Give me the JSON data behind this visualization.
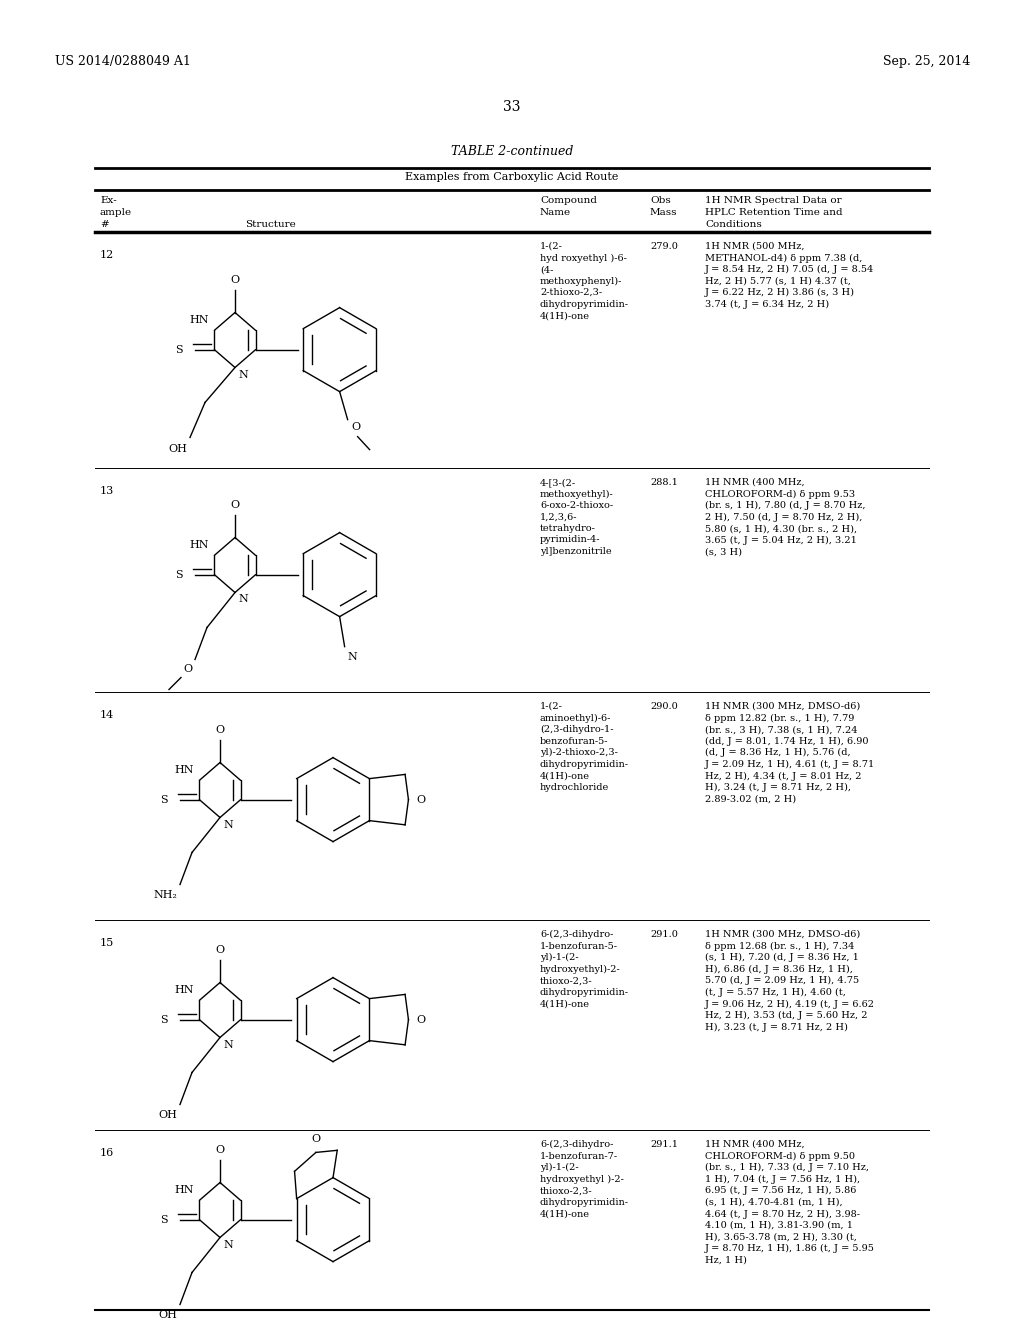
{
  "background_color": "#ffffff",
  "page_header_left": "US 2014/0288049 A1",
  "page_header_right": "Sep. 25, 2014",
  "page_number": "33",
  "table_title": "TABLE 2-continued",
  "table_subtitle": "Examples from Carboxylic Acid Route",
  "rows": [
    {
      "ex_num": "12",
      "compound_name": "1-(2-\nhyd roxyethyl )-6-\n(4-\nmethoxyphenyl)-\n2-thioxo-2,3-\ndihydropyrimidin-\n4(1H)-one",
      "obs_mass": "279.0",
      "nmr": "1H NMR (500 MHz,\nMETHANOL-d4) δ ppm 7.38 (d,\nJ = 8.54 Hz, 2 H) 7.05 (d, J = 8.54\nHz, 2 H) 5.77 (s, 1 H) 4.37 (t,\nJ = 6.22 Hz, 2 H) 3.86 (s, 3 H)\n3.74 (t, J = 6.34 Hz, 2 H)"
    },
    {
      "ex_num": "13",
      "compound_name": "4-[3-(2-\nmethoxyethyl)-\n6-oxo-2-thioxo-\n1,2,3,6-\ntetrahydro-\npyrimidin-4-\nyl]benzonitrile",
      "obs_mass": "288.1",
      "nmr": "1H NMR (400 MHz,\nCHLOROFORM-d) δ ppm 9.53\n(br. s, 1 H), 7.80 (d, J = 8.70 Hz,\n2 H), 7.50 (d, J = 8.70 Hz, 2 H),\n5.80 (s, 1 H), 4.30 (br. s., 2 H),\n3.65 (t, J = 5.04 Hz, 2 H), 3.21\n(s, 3 H)"
    },
    {
      "ex_num": "14",
      "compound_name": "1-(2-\naminoethyl)-6-\n(2,3-dihydro-1-\nbenzofuran-5-\nyl)-2-thioxo-2,3-\ndihydropyrimidin-\n4(1H)-one\nhydrochloride",
      "obs_mass": "290.0",
      "nmr": "1H NMR (300 MHz, DMSO-d6)\nδ ppm 12.82 (br. s., 1 H), 7.79\n(br. s., 3 H), 7.38 (s, 1 H), 7.24\n(dd, J = 8.01, 1.74 Hz, 1 H), 6.90\n(d, J = 8.36 Hz, 1 H), 5.76 (d,\nJ = 2.09 Hz, 1 H), 4.61 (t, J = 8.71\nHz, 2 H), 4.34 (t, J = 8.01 Hz, 2\nH), 3.24 (t, J = 8.71 Hz, 2 H),\n2.89-3.02 (m, 2 H)"
    },
    {
      "ex_num": "15",
      "compound_name": "6-(2,3-dihydro-\n1-benzofuran-5-\nyl)-1-(2-\nhydroxyethyl)-2-\nthioxo-2,3-\ndihydropyrimidin-\n4(1H)-one",
      "obs_mass": "291.0",
      "nmr": "1H NMR (300 MHz, DMSO-d6)\nδ ppm 12.68 (br. s., 1 H), 7.34\n(s, 1 H), 7.20 (d, J = 8.36 Hz, 1\nH), 6.86 (d, J = 8.36 Hz, 1 H),\n5.70 (d, J = 2.09 Hz, 1 H), 4.75\n(t, J = 5.57 Hz, 1 H), 4.60 (t,\nJ = 9.06 Hz, 2 H), 4.19 (t, J = 6.62\nHz, 2 H), 3.53 (td, J = 5.60 Hz, 2\nH), 3.23 (t, J = 8.71 Hz, 2 H)"
    },
    {
      "ex_num": "16",
      "compound_name": "6-(2,3-dihydro-\n1-benzofuran-7-\nyl)-1-(2-\nhydroxyethyl )-2-\nthioxo-2,3-\ndihydropyrimidin-\n4(1H)-one",
      "obs_mass": "291.1",
      "nmr": "1H NMR (400 MHz,\nCHLOROFORM-d) δ ppm 9.50\n(br. s., 1 H), 7.33 (d, J = 7.10 Hz,\n1 H), 7.04 (t, J = 7.56 Hz, 1 H),\n6.95 (t, J = 7.56 Hz, 1 H), 5.86\n(s, 1 H), 4.70-4.81 (m, 1 H),\n4.64 (t, J = 8.70 Hz, 2 H), 3.98-\n4.10 (m, 1 H), 3.81-3.90 (m, 1\nH), 3.65-3.78 (m, 2 H), 3.30 (t,\nJ = 8.70 Hz, 1 H), 1.86 (t, J = 5.95\nHz, 1 H)"
    }
  ]
}
